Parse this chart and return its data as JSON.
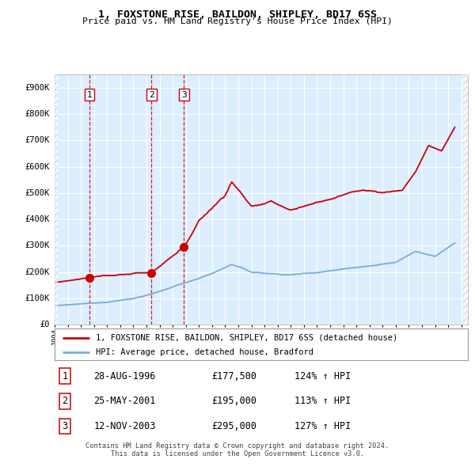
{
  "title": "1, FOXSTONE RISE, BAILDON, SHIPLEY, BD17 6SS",
  "subtitle": "Price paid vs. HM Land Registry's House Price Index (HPI)",
  "ylabel_ticks": [
    "£0",
    "£100K",
    "£200K",
    "£300K",
    "£400K",
    "£500K",
    "£600K",
    "£700K",
    "£800K",
    "£900K"
  ],
  "ytick_values": [
    0,
    100000,
    200000,
    300000,
    400000,
    500000,
    600000,
    700000,
    800000,
    900000
  ],
  "ylim": [
    0,
    950000
  ],
  "xlim_start": 1994.0,
  "xlim_end": 2025.5,
  "hpi_color": "#7aaadd",
  "price_color": "#cc0000",
  "plot_bg": "#ddeeff",
  "legend_label_price": "1, FOXSTONE RISE, BAILDON, SHIPLEY, BD17 6SS (detached house)",
  "legend_label_hpi": "HPI: Average price, detached house, Bradford",
  "sales": [
    {
      "num": 1,
      "date": "28-AUG-1996",
      "price": 177500,
      "year": 1996.65,
      "pct": "124%",
      "arrow": "↑"
    },
    {
      "num": 2,
      "date": "25-MAY-2001",
      "price": 195000,
      "year": 2001.39,
      "pct": "113%",
      "arrow": "↑"
    },
    {
      "num": 3,
      "date": "12-NOV-2003",
      "price": 295000,
      "year": 2003.86,
      "pct": "127%",
      "arrow": "↑"
    }
  ],
  "footer1": "Contains HM Land Registry data © Crown copyright and database right 2024.",
  "footer2": "This data is licensed under the Open Government Licence v3.0.",
  "hpi_anchors_x": [
    1994.0,
    1996.0,
    1998.0,
    2000.0,
    2002.0,
    2004.0,
    2006.0,
    2007.5,
    2009.0,
    2010.0,
    2012.0,
    2014.0,
    2016.0,
    2017.5,
    2020.0,
    2021.5,
    2023.0,
    2024.5
  ],
  "hpi_anchors_y": [
    72000,
    78000,
    85000,
    100000,
    125000,
    160000,
    195000,
    230000,
    200000,
    195000,
    190000,
    200000,
    215000,
    225000,
    240000,
    280000,
    260000,
    310000
  ],
  "price_anchors_x": [
    1994.0,
    1996.65,
    2001.39,
    2003.86,
    2005.0,
    2007.0,
    2007.5,
    2009.0,
    2010.5,
    2012.0,
    2014.0,
    2016.0,
    2017.5,
    2019.0,
    2020.5,
    2021.5,
    2022.5,
    2023.5,
    2024.5
  ],
  "price_anchors_y": [
    160000,
    177500,
    195000,
    295000,
    390000,
    490000,
    540000,
    450000,
    460000,
    430000,
    460000,
    490000,
    510000,
    500000,
    510000,
    580000,
    680000,
    660000,
    750000
  ]
}
